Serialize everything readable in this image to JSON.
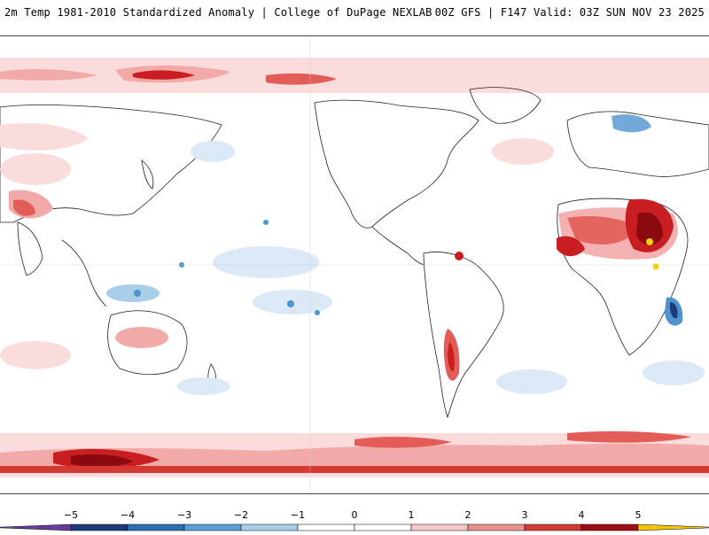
{
  "header": {
    "left_title": "2m Temp 1981-2010 Standardized Anomaly | College of DuPage NEXLAB",
    "right_title": "00Z GFS | F147 Valid: 03Z SUN NOV 23 2025"
  },
  "colorbar": {
    "ticks": [
      {
        "label": "−5",
        "value": -5
      },
      {
        "label": "−4",
        "value": -4
      },
      {
        "label": "−3",
        "value": -3
      },
      {
        "label": "−2",
        "value": -2
      },
      {
        "label": "−1",
        "value": -1
      },
      {
        "label": "0",
        "value": 0
      },
      {
        "label": "1",
        "value": 1
      },
      {
        "label": "2",
        "value": 2
      },
      {
        "label": "3",
        "value": 3
      },
      {
        "label": "4",
        "value": 4
      },
      {
        "label": "5",
        "value": 5
      }
    ],
    "segments": [
      {
        "from": -6,
        "to": -5,
        "color": "#6a3d9a"
      },
      {
        "from": -5,
        "to": -4,
        "color": "#1f3a7a"
      },
      {
        "from": -4,
        "to": -3,
        "color": "#2c6fb5"
      },
      {
        "from": -3,
        "to": -2,
        "color": "#5aa0d8"
      },
      {
        "from": -2,
        "to": -1,
        "color": "#a8cde9"
      },
      {
        "from": -1,
        "to": 0,
        "color": "#ffffff"
      },
      {
        "from": 0,
        "to": 1,
        "color": "#ffffff"
      },
      {
        "from": 1,
        "to": 2,
        "color": "#f6c8c8"
      },
      {
        "from": 2,
        "to": 3,
        "color": "#e8928f"
      },
      {
        "from": 3,
        "to": 4,
        "color": "#d43a34"
      },
      {
        "from": 4,
        "to": 5,
        "color": "#9e0d14"
      },
      {
        "from": 5,
        "to": 6,
        "color": "#f5c400"
      }
    ]
  },
  "colors": {
    "warm1": "#fbdcdc",
    "warm2": "#f2aaa8",
    "warm3": "#e25c58",
    "warm4": "#c81e22",
    "warm5": "#8b0a10",
    "cool1": "#dbe9f6",
    "cool2": "#a8cde9",
    "cool3": "#4f93cf",
    "extreme": "#f5d000",
    "coast": "#222222"
  }
}
